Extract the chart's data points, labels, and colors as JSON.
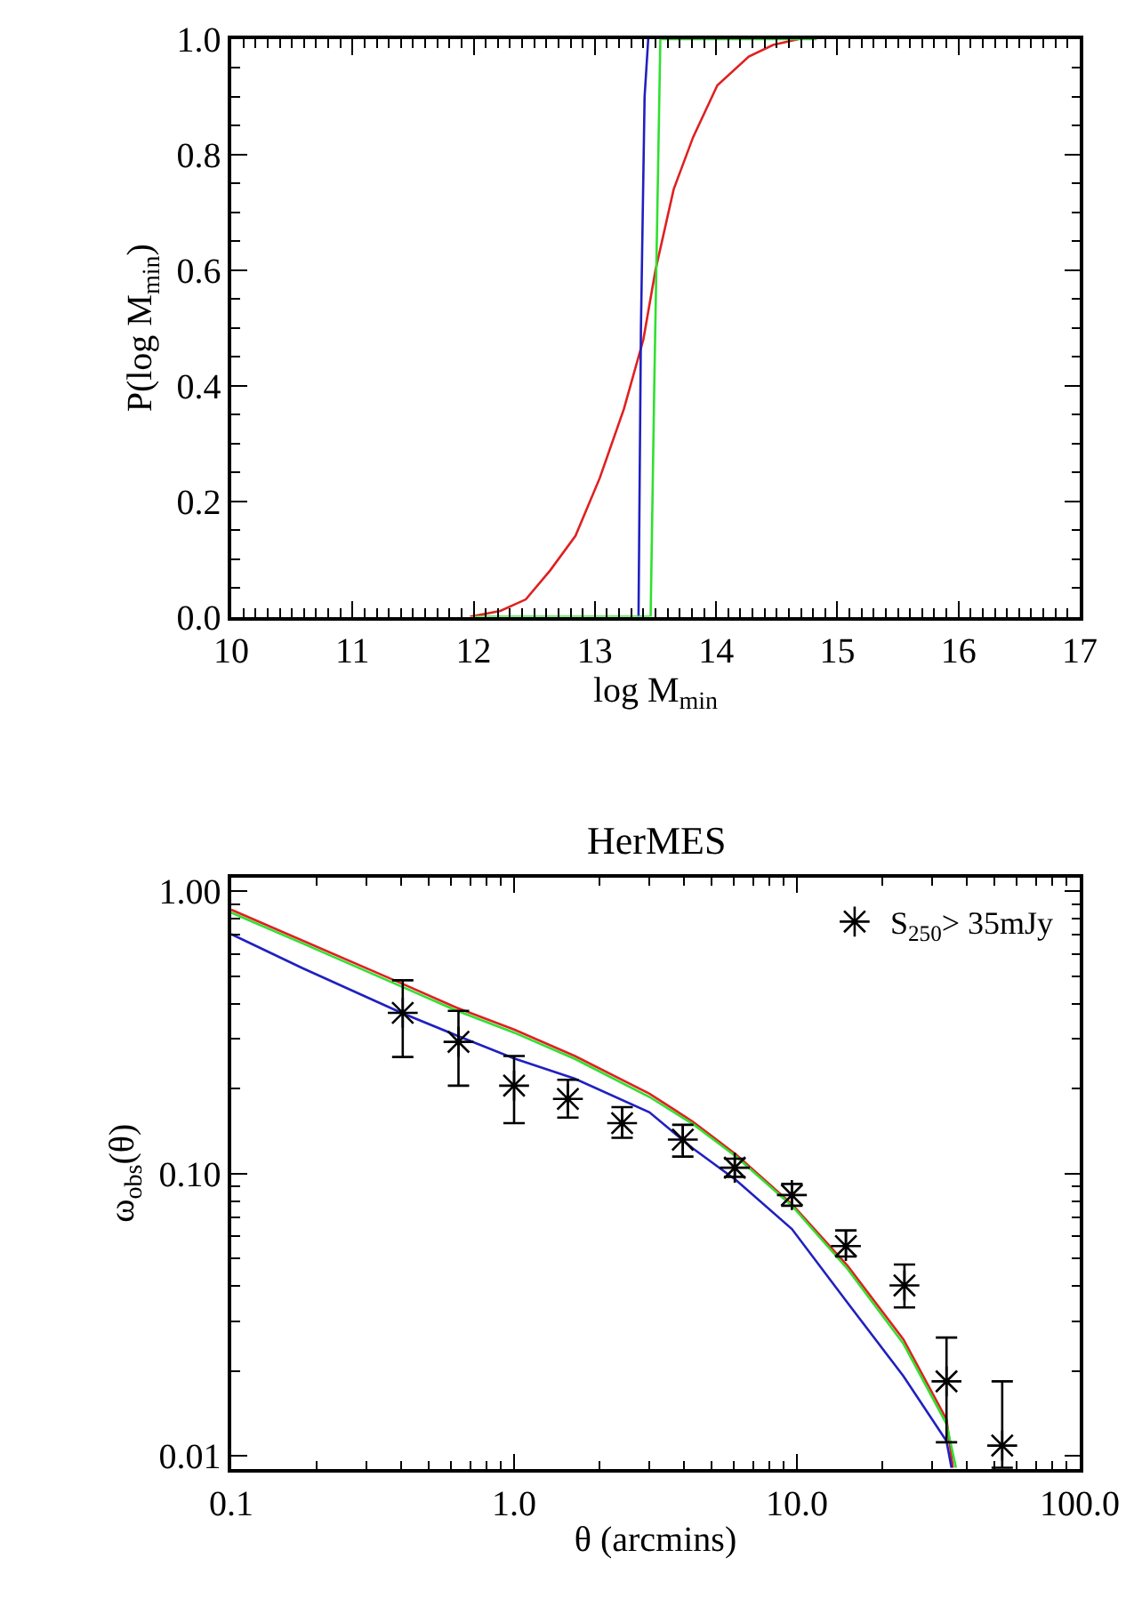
{
  "chart_data": [
    {
      "type": "line",
      "xlabel": "log M$_{min}$",
      "ylabel": "P(log M$_{min}$)",
      "xlim": [
        10,
        17
      ],
      "ylim": [
        0,
        1.0
      ],
      "xticks": [
        10,
        11,
        12,
        13,
        14,
        15,
        16,
        17
      ],
      "yticks": [
        {
          "value": 0,
          "label": "0.0"
        },
        {
          "value": 0.2,
          "label": "0.2"
        },
        {
          "value": 0.4,
          "label": "0.4"
        },
        {
          "value": 0.6,
          "label": "0.6"
        },
        {
          "value": 0.8,
          "label": "0.8"
        },
        {
          "value": 1.0,
          "label": "1.0"
        }
      ],
      "legend": false,
      "series": [
        {
          "color": "#e02020",
          "x": [
            11.97,
            12.22,
            12.43,
            12.63,
            12.84,
            13.04,
            13.24,
            13.4,
            13.5,
            13.65,
            13.81,
            14.01,
            14.27,
            14.47,
            14.68
          ],
          "values": [
            0,
            0.01,
            0.03,
            0.08,
            0.14,
            0.24,
            0.36,
            0.48,
            0.6,
            0.74,
            0.83,
            0.92,
            0.97,
            0.99,
            1.0
          ]
        },
        {
          "color": "#2020c0",
          "x": [
            13.36,
            13.38,
            13.41,
            13.44
          ],
          "values": [
            0,
            0.5,
            0.9,
            1.0
          ]
        },
        {
          "color": "#30e030",
          "x": [
            12.0,
            13.46,
            13.49,
            13.54,
            14.83
          ],
          "values": [
            0,
            0,
            0.4,
            1.0,
            1.0
          ]
        }
      ]
    },
    {
      "type": "line",
      "title": "HerMES",
      "xlabel": "θ (arcmins)",
      "ylabel": "ω$_{obs}$(θ)",
      "log": "xy",
      "xlim": [
        0.1,
        100
      ],
      "ylim": [
        0.009,
        1.12
      ],
      "xticks": [
        0.1,
        {
          "value": 1,
          "label": "1.0"
        },
        {
          "value": 10,
          "label": "10.0"
        },
        {
          "value": 100,
          "label": "100.0"
        }
      ],
      "yticks": [
        0.01,
        {
          "value": 0.1,
          "label": "0.10"
        },
        {
          "value": 1,
          "label": "1.00"
        }
      ],
      "legend": "top right",
      "series": [
        {
          "color": "#e02020",
          "x": [
            0.1,
            0.178,
            0.4,
            0.63,
            1.0,
            1.64,
            3.01,
            4.28,
            6.09,
            9.6,
            15.1,
            23.8,
            33.8,
            35.6
          ],
          "values": [
            0.86,
            0.67,
            0.472,
            0.386,
            0.324,
            0.261,
            0.192,
            0.153,
            0.117,
            0.078,
            0.0472,
            0.0259,
            0.0135,
            0.0091
          ]
        },
        {
          "color": "#30e030",
          "x": [
            0.1,
            0.178,
            0.4,
            0.63,
            1.0,
            1.64,
            3.01,
            4.28,
            6.09,
            9.6,
            15.1,
            23.8,
            33.8,
            36.5
          ],
          "values": [
            0.84,
            0.655,
            0.46,
            0.377,
            0.316,
            0.255,
            0.187,
            0.15,
            0.115,
            0.077,
            0.046,
            0.025,
            0.013,
            0.0091
          ]
        },
        {
          "color": "#2020c0",
          "x": [
            0.1,
            0.178,
            0.4,
            0.63,
            1.0,
            1.64,
            3.01,
            4.28,
            6.09,
            9.6,
            15.1,
            23.8,
            33.8,
            35.2
          ],
          "values": [
            0.705,
            0.535,
            0.371,
            0.308,
            0.256,
            0.217,
            0.165,
            0.123,
            0.095,
            0.0637,
            0.0349,
            0.0192,
            0.0113,
            0.0091
          ]
        },
        {
          "type": "scatter",
          "name": "S$_{250}$> 35mJy",
          "color": "#000000",
          "marker": "cross",
          "x": [
            0.404,
            0.636,
            1.0,
            1.55,
            2.41,
            3.95,
            6.03,
            9.6,
            14.9,
            24,
            33.8,
            53.2
          ],
          "values": [
            0.371,
            0.293,
            0.205,
            0.184,
            0.151,
            0.132,
            0.105,
            0.084,
            0.0554,
            0.0402,
            0.0184,
            0.0109
          ],
          "errors": [
            [
              0.259,
              0.484
            ],
            [
              0.205,
              0.377
            ],
            [
              0.151,
              0.261
            ],
            [
              0.158,
              0.215
            ],
            [
              0.134,
              0.172
            ],
            [
              0.115,
              0.149
            ],
            [
              0.0975,
              0.113
            ],
            [
              0.077,
              0.092
            ],
            [
              0.0509,
              0.063
            ],
            [
              0.0336,
              0.0477
            ],
            [
              0.0112,
              0.0263
            ],
            [
              0.0091,
              0.0184
            ]
          ]
        }
      ]
    }
  ]
}
